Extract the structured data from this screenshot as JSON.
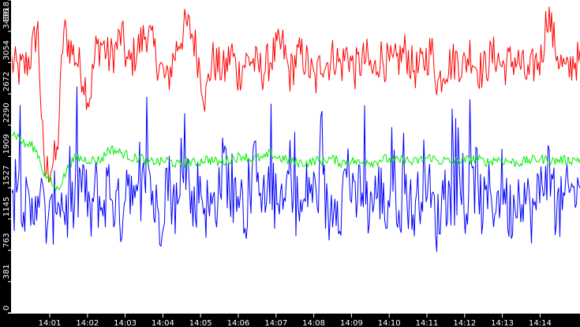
{
  "chart_data": {
    "type": "line",
    "title": "",
    "xlabel": "",
    "ylabel": "",
    "ylim": [
      0,
      3818
    ],
    "grid": false,
    "legend": "none",
    "y_ticks": [
      "0",
      "381",
      "763",
      "1145",
      "1527",
      "1909",
      "2290",
      "2672",
      "3054",
      "3436",
      "3818"
    ],
    "x_ticks": [
      "14:01",
      "14:02",
      "14:03",
      "14:04",
      "14:05",
      "14:06",
      "14:07",
      "14:08",
      "14:09",
      "14:10",
      "14:11",
      "14:12",
      "14:13",
      "14:14"
    ],
    "x_range": [
      "14:00:00",
      "14:14:56"
    ],
    "series": [
      {
        "name": "red-series",
        "color": "#ff0000",
        "approx_mean": 3000,
        "values_per_20s": [
          3050,
          2950,
          3000,
          3150,
          3500,
          1700,
          1800,
          1900,
          3450,
          3250,
          3100,
          2900,
          2600,
          3200,
          3300,
          3100,
          3200,
          3400,
          3000,
          3150,
          3300,
          3450,
          3200,
          3000,
          2800,
          3100,
          3350,
          3500,
          3400,
          3050,
          2600,
          3100,
          3000,
          2950,
          3200,
          2900,
          3050,
          3100,
          3000,
          2950,
          3100,
          3200,
          3250,
          2900,
          3100,
          3150,
          3000,
          2800,
          3100,
          3050,
          3150,
          3000,
          3200,
          2950,
          3050,
          3100,
          2900,
          3150,
          3050,
          3000,
          3100,
          3200,
          3000,
          2950,
          3100,
          3200,
          2800,
          3000,
          3050,
          3100,
          3000,
          3200,
          3000,
          2950,
          3100,
          3150,
          3000,
          3050,
          3100,
          3000,
          2850,
          3050,
          3100,
          3700,
          3300,
          3050,
          2900,
          3100,
          3050
        ]
      },
      {
        "name": "blue-series",
        "color": "#0000ff",
        "approx_mean": 1400,
        "values_per_20s": [
          1200,
          1700,
          1300,
          1100,
          1600,
          1200,
          1050,
          1500,
          1300,
          1200,
          1400,
          1700,
          1100,
          1500,
          1250,
          1600,
          1300,
          1200,
          1800,
          1200,
          1350,
          1900,
          1300,
          1150,
          1700,
          1400,
          1200,
          1900,
          1200,
          1600,
          1300,
          1250,
          1500,
          1900,
          1300,
          1700,
          1200,
          1400,
          2000,
          1300,
          1600,
          1300,
          1150,
          1800,
          1350,
          1200,
          1600,
          1400,
          1700,
          1100,
          1500,
          1300,
          1900,
          1200,
          1600,
          1300,
          1400,
          1500,
          1200,
          1700,
          1300,
          1550,
          1200,
          1400,
          1800,
          1300,
          1100,
          1500,
          1300,
          1600,
          1250,
          1400,
          1700,
          1200,
          1500,
          1300,
          1650,
          1200,
          1400,
          1550,
          1300,
          1200,
          1600,
          1800,
          1300,
          1250,
          1400,
          1500,
          1350
        ]
      },
      {
        "name": "green-series",
        "color": "#00ee00",
        "approx_mean": 1850,
        "values_per_20s": [
          2200,
          2150,
          2050,
          2050,
          1950,
          1700,
          1600,
          1500,
          1650,
          1820,
          1900,
          1870,
          1870,
          1860,
          1880,
          2000,
          1980,
          1950,
          1920,
          1880,
          1900,
          1820,
          1850,
          1840,
          1860,
          1830,
          1800,
          1850,
          1830,
          1840,
          1880,
          1860,
          1830,
          1850,
          1880,
          1900,
          1920,
          1870,
          1890,
          1880,
          1950,
          1900,
          1880,
          1850,
          1840,
          1830,
          1830,
          1860,
          1850,
          1880,
          1870,
          1830,
          1860,
          1850,
          1820,
          1860,
          1830,
          1870,
          1880,
          1850,
          1860,
          1870,
          1830,
          1860,
          1880,
          1900,
          1850,
          1860,
          1840,
          1850,
          1860,
          1870,
          1880,
          1850,
          1840,
          1880,
          1860,
          1850,
          1830,
          1840,
          1860,
          1870,
          1880,
          1860,
          1850,
          1870,
          1860,
          1870,
          1880
        ]
      }
    ]
  },
  "axes": {
    "background": "#000000",
    "plot_background": "#ffffff",
    "axis_color": "#ffffff",
    "label_color": "#ffffff"
  }
}
